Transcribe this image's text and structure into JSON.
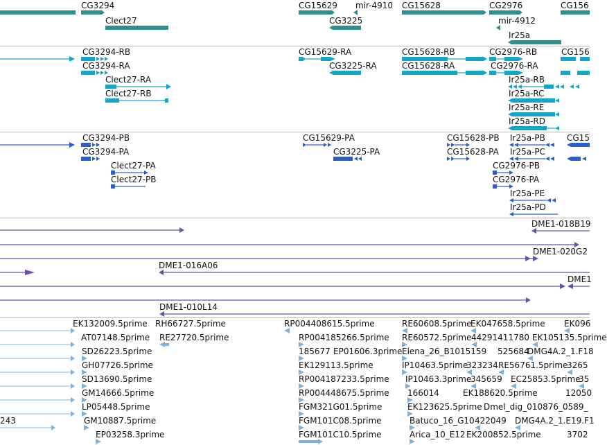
{
  "tracks": [
    {
      "id": "genes",
      "color": "#2f8f8f",
      "features": [
        {
          "label": "CG3294"
        },
        {
          "label": "Clect27"
        },
        {
          "label": "CG15629"
        },
        {
          "label": "mir-4910"
        },
        {
          "label": "CG3225"
        },
        {
          "label": "CG15628"
        },
        {
          "label": "CG2976"
        },
        {
          "label": "mir-4912"
        },
        {
          "label": "Ir25a"
        },
        {
          "label": "CG156"
        }
      ]
    },
    {
      "id": "transcripts",
      "color": "#14a6c9",
      "features": [
        {
          "label": "CG3294-RB"
        },
        {
          "label": "CG3294-RA"
        },
        {
          "label": "Clect27-RA"
        },
        {
          "label": "Clect27-RB"
        },
        {
          "label": "CG15629-RA"
        },
        {
          "label": "CG3225-RA"
        },
        {
          "label": "CG15628-RB"
        },
        {
          "label": "CG15628-RA"
        },
        {
          "label": "CG2976-RB"
        },
        {
          "label": "CG2976-RA"
        },
        {
          "label": "Ir25a-RB"
        },
        {
          "label": "Ir25a-RC"
        },
        {
          "label": "Ir25a-RE"
        },
        {
          "label": "Ir25a-RD"
        },
        {
          "label": "CG156"
        }
      ]
    },
    {
      "id": "proteins",
      "color": "#2a5fc9",
      "features": [
        {
          "label": "CG3294-PB"
        },
        {
          "label": "CG3294-PA"
        },
        {
          "label": "Clect27-PA"
        },
        {
          "label": "Clect27-PB"
        },
        {
          "label": "CG15629-PA"
        },
        {
          "label": "CG3225-PA"
        },
        {
          "label": "CG15628-PB"
        },
        {
          "label": "CG15628-PA"
        },
        {
          "label": "Ir25a-PB"
        },
        {
          "label": "Ir25a-PC"
        },
        {
          "label": "CG2976-PB"
        },
        {
          "label": "CG2976-PA"
        },
        {
          "label": "Ir25a-PE"
        },
        {
          "label": "Ir25a-PD"
        },
        {
          "label": "CG15"
        }
      ]
    },
    {
      "id": "bacs",
      "color": "#6a4fb0",
      "features": [
        {
          "label": "DME1-018B19"
        },
        {
          "label": "DME1-020G2"
        },
        {
          "label": "DME1-016A06"
        },
        {
          "label": "DME1"
        },
        {
          "label": "DME1-010L14"
        }
      ]
    },
    {
      "id": "ests",
      "color": "#7fb3dd",
      "features": [
        {
          "label": "EK132009.5prime"
        },
        {
          "label": "RH66727.5prime"
        },
        {
          "label": "RP004408615.5prime"
        },
        {
          "label": "RE60608.5prime"
        },
        {
          "label": "EK047658.5prime"
        },
        {
          "label": "EK096"
        },
        {
          "label": "AT07148.5prime"
        },
        {
          "label": "RE27720.5prime"
        },
        {
          "label": "RP004185266.5prime"
        },
        {
          "label": "RE60572.5prime"
        },
        {
          "label": "44291411780"
        },
        {
          "label": "EK105135.5prime"
        },
        {
          "label": "SD26223.5prime"
        },
        {
          "label": "185677"
        },
        {
          "label": "EP01606.3prime"
        },
        {
          "label": "Elena_26_B1015159"
        },
        {
          "label": "525684"
        },
        {
          "label": "DMG4A.2_1.F18"
        },
        {
          "label": "GH07726.5prime"
        },
        {
          "label": "EK129113.5prime"
        },
        {
          "label": "IP10463.5prime"
        },
        {
          "label": "323234"
        },
        {
          "label": "RE56761.5prime"
        },
        {
          "label": "3265"
        },
        {
          "label": "SD13690.5prime"
        },
        {
          "label": "RP004187233.5prime"
        },
        {
          "label": "IP10463.3prime"
        },
        {
          "label": "345659"
        },
        {
          "label": "EC25853.5prime"
        },
        {
          "label": "35"
        },
        {
          "label": "GM14666.5prime"
        },
        {
          "label": "RP004448675.5prime"
        },
        {
          "label": "166014"
        },
        {
          "label": "EK188620.5prime"
        },
        {
          "label": "12050"
        },
        {
          "label": "LP05448.5prime"
        },
        {
          "label": "FGM321G01.5prime"
        },
        {
          "label": "EK123625.5prime"
        },
        {
          "label": "Dmel_dig_010876_0589_"
        },
        {
          "label": "243"
        },
        {
          "label": "GM10887.5prime"
        },
        {
          "label": "FGM101C08.5prime"
        },
        {
          "label": "Batuco_16_G10"
        },
        {
          "label": "422049"
        },
        {
          "label": "DMG4A.2_1.E19.F1"
        },
        {
          "label": "EP03258.3prime"
        },
        {
          "label": "FGM101C10.5prime"
        },
        {
          "label": "Arica_10_E12"
        },
        {
          "label": "EK200852.5prime"
        },
        {
          "label": "3702"
        }
      ]
    }
  ]
}
